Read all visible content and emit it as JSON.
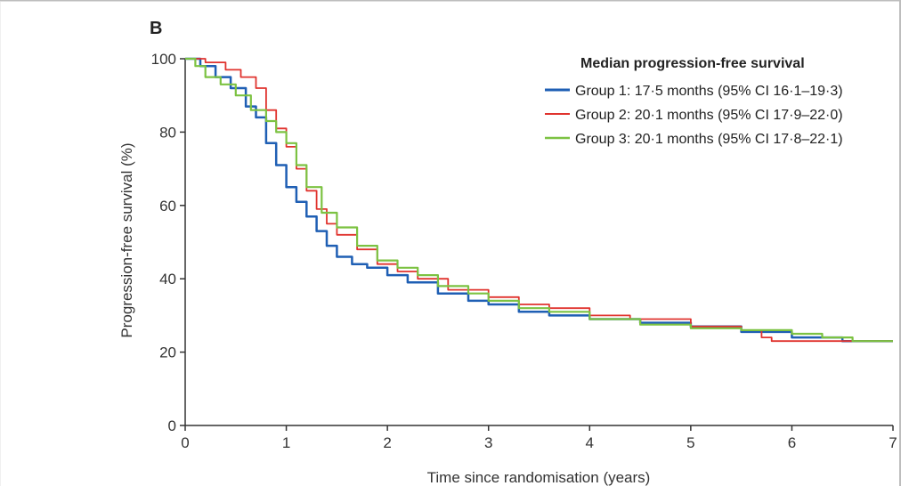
{
  "chart_data": {
    "type": "line",
    "panel_label": "B",
    "xlabel": "Time since randomisation (years)",
    "ylabel": "Progression-free survival (%)",
    "xlim": [
      0,
      7
    ],
    "ylim": [
      0,
      100
    ],
    "x_ticks": [
      0,
      1,
      2,
      3,
      4,
      5,
      6,
      7
    ],
    "y_ticks": [
      0,
      20,
      40,
      60,
      80,
      100
    ],
    "grid": false,
    "legend": {
      "title": "Median progression-free survival",
      "placement": "top-right"
    },
    "series": [
      {
        "name": "Group 1: 17·5 months (95% CI 16·1–19·3)",
        "color": "#1f5fb4",
        "points": [
          [
            0,
            100
          ],
          [
            0.15,
            98
          ],
          [
            0.3,
            95
          ],
          [
            0.45,
            92
          ],
          [
            0.6,
            87
          ],
          [
            0.7,
            84
          ],
          [
            0.8,
            77
          ],
          [
            0.9,
            71
          ],
          [
            1.0,
            65
          ],
          [
            1.1,
            61
          ],
          [
            1.2,
            57
          ],
          [
            1.3,
            53
          ],
          [
            1.4,
            49
          ],
          [
            1.5,
            46
          ],
          [
            1.65,
            44
          ],
          [
            1.8,
            43
          ],
          [
            2.0,
            41
          ],
          [
            2.2,
            39
          ],
          [
            2.5,
            36
          ],
          [
            2.8,
            34
          ],
          [
            3.0,
            33
          ],
          [
            3.3,
            31
          ],
          [
            3.6,
            30
          ],
          [
            4.0,
            29
          ],
          [
            4.5,
            28
          ],
          [
            5.0,
            27
          ],
          [
            5.5,
            25.5
          ],
          [
            6.0,
            24
          ],
          [
            6.5,
            23
          ],
          [
            7.0,
            23
          ]
        ]
      },
      {
        "name": "Group 2: 20·1 months (95% CI 17·9–22·0)",
        "color": "#e0332e",
        "points": [
          [
            0,
            100
          ],
          [
            0.2,
            99
          ],
          [
            0.4,
            97
          ],
          [
            0.55,
            95
          ],
          [
            0.7,
            92
          ],
          [
            0.8,
            86
          ],
          [
            0.9,
            81
          ],
          [
            1.0,
            76
          ],
          [
            1.1,
            70
          ],
          [
            1.2,
            64
          ],
          [
            1.3,
            59
          ],
          [
            1.4,
            55
          ],
          [
            1.5,
            52
          ],
          [
            1.7,
            48
          ],
          [
            1.9,
            44
          ],
          [
            2.1,
            42
          ],
          [
            2.3,
            40
          ],
          [
            2.6,
            37
          ],
          [
            3.0,
            35
          ],
          [
            3.3,
            33
          ],
          [
            3.6,
            32
          ],
          [
            4.0,
            30
          ],
          [
            4.4,
            29
          ],
          [
            5.0,
            27
          ],
          [
            5.5,
            26
          ],
          [
            5.7,
            24
          ],
          [
            5.8,
            23
          ],
          [
            6.2,
            23
          ],
          [
            6.5,
            23
          ],
          [
            7.0,
            23
          ]
        ]
      },
      {
        "name": "Group 3: 20·1 months (95% CI 17·8–22·1)",
        "color": "#7cc242",
        "points": [
          [
            0,
            100
          ],
          [
            0.1,
            98
          ],
          [
            0.2,
            95
          ],
          [
            0.35,
            93
          ],
          [
            0.5,
            90
          ],
          [
            0.65,
            86
          ],
          [
            0.8,
            83
          ],
          [
            0.9,
            80
          ],
          [
            1.0,
            77
          ],
          [
            1.1,
            71
          ],
          [
            1.2,
            65
          ],
          [
            1.35,
            58
          ],
          [
            1.5,
            54
          ],
          [
            1.7,
            49
          ],
          [
            1.9,
            45
          ],
          [
            2.1,
            43
          ],
          [
            2.3,
            41
          ],
          [
            2.5,
            38
          ],
          [
            2.8,
            36
          ],
          [
            3.0,
            34
          ],
          [
            3.3,
            32
          ],
          [
            3.6,
            31
          ],
          [
            4.0,
            29
          ],
          [
            4.5,
            27.5
          ],
          [
            5.0,
            26.5
          ],
          [
            5.5,
            26
          ],
          [
            6.0,
            25
          ],
          [
            6.3,
            24
          ],
          [
            6.6,
            23
          ],
          [
            7.0,
            23
          ]
        ]
      }
    ]
  }
}
